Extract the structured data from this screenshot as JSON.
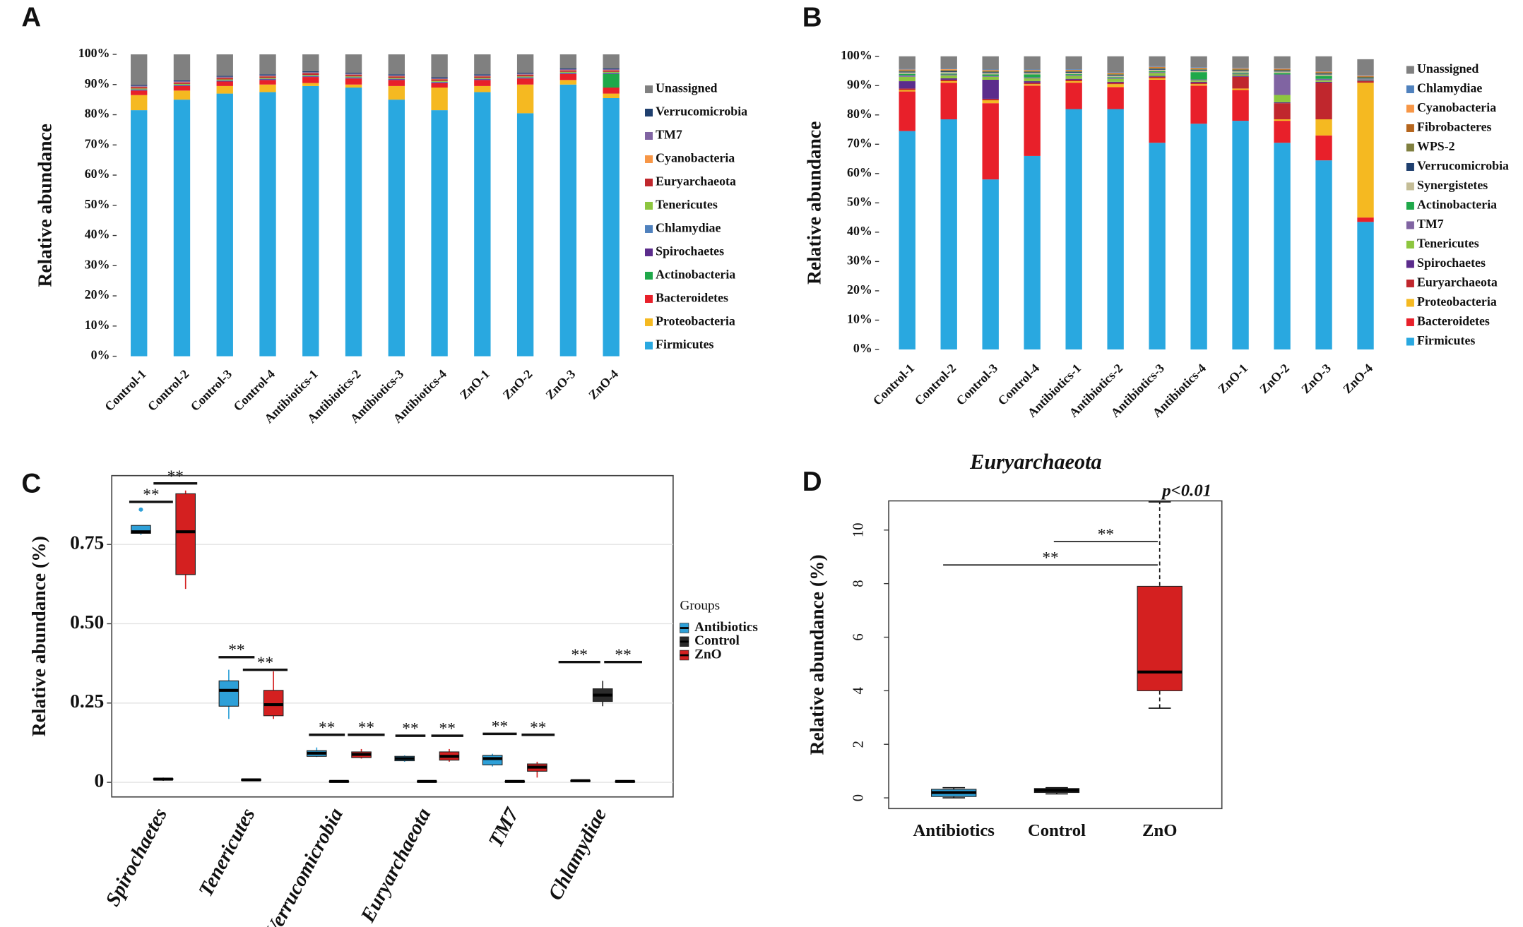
{
  "chart_data": [
    {
      "type": "stacked-bar",
      "panel_label": "A",
      "y_label": "Relative abundance",
      "categories": [
        "Control-1",
        "Control-2",
        "Control-3",
        "Control-4",
        "Antibiotics-1",
        "Antibiotics-2",
        "Antibiotics-3",
        "Antibiotics-4",
        "ZnO-1",
        "ZnO-2",
        "ZnO-3",
        "ZnO-4"
      ],
      "ylim": [
        0,
        100
      ],
      "yticks": [
        {
          "value": 0,
          "label": "0%"
        },
        {
          "value": 10,
          "label": "10%"
        },
        {
          "value": 20,
          "label": "20%"
        },
        {
          "value": 30,
          "label": "30%"
        },
        {
          "value": 40,
          "label": "40%"
        },
        {
          "value": 50,
          "label": "50%"
        },
        {
          "value": 60,
          "label": "60%"
        },
        {
          "value": 70,
          "label": "70%"
        },
        {
          "value": 80,
          "label": "80%"
        },
        {
          "value": 90,
          "label": "90%"
        },
        {
          "value": 100,
          "label": "100%"
        }
      ],
      "series": [
        {
          "name": "Firmicutes",
          "color": "#29a8e0",
          "values": [
            81.5,
            85,
            87,
            87.5,
            89.5,
            89,
            85,
            81.5,
            87.5,
            80.5,
            90,
            85.5
          ]
        },
        {
          "name": "Proteobacteria",
          "color": "#f5b921",
          "values": [
            5,
            3,
            2.5,
            2.5,
            1,
            1,
            4.5,
            7.5,
            2,
            9.5,
            1.5,
            1.5
          ]
        },
        {
          "name": "Bacteroidetes",
          "color": "#e8202a",
          "values": [
            1.5,
            1.5,
            1.5,
            1.5,
            2,
            2,
            2,
            1.5,
            2,
            2,
            2,
            2
          ]
        },
        {
          "name": "Actinobacteria",
          "color": "#1fa84a",
          "values": [
            0,
            0,
            0,
            0,
            0,
            0,
            0,
            0,
            0,
            0,
            0,
            4.5
          ]
        },
        {
          "name": "Spirochaetes",
          "color": "#5b2c8c",
          "values": [
            0.2,
            0.2,
            0.2,
            0.2,
            0.2,
            0.2,
            0.2,
            0.2,
            0.2,
            0.2,
            0.2,
            0.2
          ]
        },
        {
          "name": "Chlamydiae",
          "color": "#4f81bd",
          "values": [
            0.2,
            0.2,
            0.2,
            0.2,
            0.2,
            0.2,
            0.2,
            0.2,
            0.2,
            0.2,
            0.2,
            0.2
          ]
        },
        {
          "name": "Tenericutes",
          "color": "#8dc63f",
          "values": [
            0.3,
            0.3,
            0.3,
            0.3,
            0.3,
            0.3,
            0.3,
            0.3,
            0.3,
            0.3,
            0.3,
            0.3
          ]
        },
        {
          "name": "Euryarchaeota",
          "color": "#c0272d",
          "values": [
            0.5,
            0.5,
            0.5,
            0.5,
            0.5,
            0.5,
            0.5,
            0.5,
            0.5,
            0.5,
            0.5,
            0.5
          ]
        },
        {
          "name": "Cyanobacteria",
          "color": "#f79646",
          "values": [
            0.1,
            0.1,
            0.1,
            0.1,
            0.1,
            0.1,
            0.1,
            0.1,
            0.1,
            0.1,
            0.1,
            0.1
          ]
        },
        {
          "name": "TM7",
          "color": "#8064a2",
          "values": [
            0.3,
            0.3,
            0.3,
            0.3,
            0.3,
            0.3,
            0.3,
            0.3,
            0.3,
            0.3,
            0.3,
            0.3
          ]
        },
        {
          "name": "Verrucomicrobia",
          "color": "#1f3f6e",
          "values": [
            0.3,
            0.3,
            0.3,
            0.3,
            0.3,
            0.3,
            0.3,
            0.3,
            0.3,
            0.3,
            0.3,
            0.3
          ]
        },
        {
          "name": "Unassigned",
          "color": "#808080",
          "values": [
            10.1,
            8.6,
            7.1,
            6.6,
            5.6,
            6.1,
            6.6,
            7.6,
            6.6,
            6.1,
            4.6,
            4.6
          ]
        }
      ]
    },
    {
      "type": "stacked-bar",
      "panel_label": "B",
      "y_label": "Relative abundance",
      "categories": [
        "Control-1",
        "Control-2",
        "Control-3",
        "Control-4",
        "Antibiotics-1",
        "Antibiotics-2",
        "Antibiotics-3",
        "Antibiotics-4",
        "ZnO-1",
        "ZnO-2",
        "ZnO-3",
        "ZnO-4"
      ],
      "ylim": [
        0,
        100
      ],
      "yticks": [
        {
          "value": 0,
          "label": "0%"
        },
        {
          "value": 10,
          "label": "10%"
        },
        {
          "value": 20,
          "label": "20%"
        },
        {
          "value": 30,
          "label": "30%"
        },
        {
          "value": 40,
          "label": "40%"
        },
        {
          "value": 50,
          "label": "50%"
        },
        {
          "value": 60,
          "label": "60%"
        },
        {
          "value": 70,
          "label": "70%"
        },
        {
          "value": 80,
          "label": "80%"
        },
        {
          "value": 90,
          "label": "90%"
        },
        {
          "value": 100,
          "label": "100%"
        }
      ],
      "series": [
        {
          "name": "Firmicutes",
          "color": "#29a8e0",
          "values": [
            74.5,
            78.5,
            58,
            66,
            82,
            82,
            70.5,
            77,
            78,
            70.5,
            64.5,
            43.5
          ]
        },
        {
          "name": "Bacteroidetes",
          "color": "#e8202a",
          "values": [
            13.5,
            12.5,
            26,
            24,
            9,
            7.5,
            21.5,
            13,
            10.5,
            7.5,
            8.5,
            1.5
          ]
        },
        {
          "name": "Proteobacteria",
          "color": "#f5b921",
          "values": [
            0.5,
            0.5,
            1,
            0.5,
            0.5,
            1,
            0.5,
            0.5,
            0.5,
            0.5,
            5.5,
            46
          ]
        },
        {
          "name": "Euryarchaeota",
          "color": "#c0272d",
          "values": [
            0.5,
            0.5,
            0.5,
            0.5,
            0.5,
            0.5,
            0.5,
            0.5,
            4,
            5.5,
            12.5,
            0.5
          ]
        },
        {
          "name": "Spirochaetes",
          "color": "#5b2c8c",
          "values": [
            2.5,
            0.5,
            6.5,
            0.5,
            0.3,
            0.3,
            0.3,
            0.3,
            0.3,
            0.3,
            0.3,
            0.3
          ]
        },
        {
          "name": "Tenericutes",
          "color": "#8dc63f",
          "values": [
            1.5,
            1,
            1,
            1,
            1,
            1,
            1,
            0.5,
            0.5,
            2.5,
            0.5,
            0.2
          ]
        },
        {
          "name": "TM7",
          "color": "#8064a2",
          "values": [
            0.5,
            0.3,
            0.3,
            0.3,
            0.3,
            0.3,
            0.3,
            0.3,
            0.3,
            7,
            0.5,
            0.2
          ]
        },
        {
          "name": "Actinobacteria",
          "color": "#1fa84a",
          "values": [
            0.5,
            0.3,
            0.5,
            1,
            0.3,
            0.3,
            0.3,
            2.5,
            0.3,
            0.5,
            1,
            0.1
          ]
        },
        {
          "name": "Synergistetes",
          "color": "#c4bd97",
          "values": [
            0.5,
            0.5,
            0.5,
            0.5,
            0.5,
            0.5,
            0.5,
            0.5,
            0.5,
            0.5,
            0.5,
            0.1
          ]
        },
        {
          "name": "Verrucomicrobia",
          "color": "#1f3f6e",
          "values": [
            0.3,
            0.3,
            0.3,
            0.3,
            0.3,
            0.3,
            0.3,
            0.3,
            0.3,
            0.3,
            0.3,
            0.3
          ]
        },
        {
          "name": "WPS-2",
          "color": "#7f7f3f",
          "values": [
            0.3,
            0.3,
            0.3,
            0.3,
            0.3,
            0.3,
            0.3,
            0.3,
            0.3,
            0.3,
            0.3,
            0.3
          ]
        },
        {
          "name": "Fibrobacteres",
          "color": "#b5651d",
          "values": [
            0.2,
            0.2,
            0.2,
            0.2,
            0.2,
            0.2,
            0.2,
            0.2,
            0.2,
            0.2,
            0.2,
            0.2
          ]
        },
        {
          "name": "Cyanobacteria",
          "color": "#f79646",
          "values": [
            0.2,
            0.2,
            0.2,
            0.2,
            0.2,
            0.2,
            0.2,
            0.2,
            0.2,
            0.2,
            0.2,
            0.2
          ]
        },
        {
          "name": "Chlamydiae",
          "color": "#4f81bd",
          "values": [
            0.2,
            0.2,
            0.2,
            0.2,
            0.2,
            0.2,
            0.2,
            0.2,
            0.2,
            0.2,
            0.2,
            0.2
          ]
        },
        {
          "name": "Unassigned",
          "color": "#808080",
          "values": [
            4.3,
            4.2,
            4.5,
            4.5,
            4.4,
            5.4,
            3.4,
            3.7,
            3.9,
            4,
            5,
            5.4
          ]
        }
      ]
    },
    {
      "type": "box",
      "panel_label": "C",
      "y_label": "Relative abundance (%)",
      "legend_title": "Groups",
      "grid": true,
      "categories": [
        "Spirochaetes",
        "Tenericutes",
        "Verrucomicrobia",
        "Euryarchaeota",
        "TM7",
        "Chlamydiae"
      ],
      "ylim": [
        -0.046,
        0.967
      ],
      "yticks": [
        0,
        0.25,
        {
          "value": 0.5,
          "label": "0.50"
        },
        0.75
      ],
      "annotations": [
        "**",
        "**",
        "**",
        "**",
        "**",
        "**",
        "**",
        "**",
        "**",
        "**",
        "**",
        "**"
      ],
      "series": [
        {
          "name": "Antibiotics",
          "color": "#2ea0d8",
          "whisker_low": [
            0.78,
            0.2,
            0.08,
            0.065,
            0.05,
            0.003
          ],
          "q1": [
            0.785,
            0.24,
            0.082,
            0.068,
            0.055,
            0.004
          ],
          "median": [
            0.79,
            0.29,
            0.092,
            0.075,
            0.075,
            0.005
          ],
          "q3": [
            0.81,
            0.32,
            0.1,
            0.082,
            0.085,
            0.006
          ],
          "whisker_high": [
            0.81,
            0.355,
            0.11,
            0.085,
            0.09,
            0.007
          ],
          "outliers": [
            0.86,
            null,
            null,
            null,
            null,
            null
          ]
        },
        {
          "name": "Control",
          "color": "#2b2b2b",
          "whisker_low": [
            0.005,
            0.004,
            0.001,
            0.001,
            0.001,
            0.24
          ],
          "q1": [
            0.008,
            0.006,
            0.002,
            0.002,
            0.002,
            0.255
          ],
          "median": [
            0.01,
            0.008,
            0.003,
            0.003,
            0.003,
            0.275
          ],
          "q3": [
            0.012,
            0.01,
            0.004,
            0.004,
            0.004,
            0.295
          ],
          "whisker_high": [
            0.015,
            0.012,
            0.005,
            0.005,
            0.005,
            0.32
          ]
        },
        {
          "name": "ZnO",
          "color": "#d42020",
          "whisker_low": [
            0.61,
            0.2,
            0.075,
            0.065,
            0.015,
            0.001
          ],
          "q1": [
            0.655,
            0.21,
            0.078,
            0.07,
            0.035,
            0.002
          ],
          "median": [
            0.79,
            0.245,
            0.088,
            0.082,
            0.048,
            0.003
          ],
          "q3": [
            0.91,
            0.29,
            0.096,
            0.096,
            0.058,
            0.004
          ],
          "whisker_high": [
            0.92,
            0.35,
            0.105,
            0.105,
            0.065,
            0.005
          ]
        }
      ]
    },
    {
      "type": "box",
      "panel_label": "D",
      "title": "Euryarchaeota",
      "note": "p<0.01",
      "y_label": "Relative abundance (%)",
      "categories": [
        "Antibiotics",
        "Control",
        "ZnO"
      ],
      "colors": [
        "#2ea0d8",
        "#2b2b2b",
        "#d42020"
      ],
      "ylim": [
        -0.4,
        11.09
      ],
      "yticks": [
        0,
        2,
        4,
        6,
        8,
        10
      ],
      "annotations": [
        "**",
        "**"
      ],
      "whisker_low": [
        0,
        0.15,
        3.35
      ],
      "q1": [
        0.05,
        0.2,
        4.0
      ],
      "median": [
        0.2,
        0.28,
        4.7
      ],
      "q3": [
        0.32,
        0.35,
        7.9
      ],
      "whisker_high": [
        0.38,
        0.38,
        11.05
      ]
    }
  ]
}
